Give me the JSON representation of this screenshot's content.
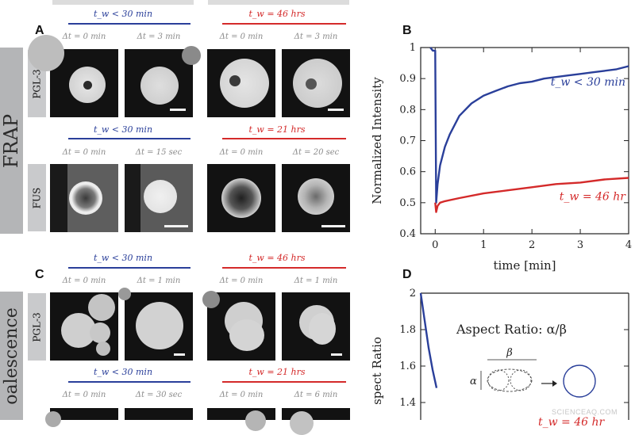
{
  "figure": {
    "side_labels": {
      "frap": "FRAP",
      "coalescence": "oalescence"
    },
    "panel_letters": {
      "A": "A",
      "B": "B",
      "C": "C",
      "D": "D"
    },
    "proteins": {
      "pgl3": "PGL-3",
      "fus": "FUS"
    },
    "conditions": {
      "a_top_left": "t_w < 30  min",
      "a_top_right": "t_w = 46  hrs",
      "a_bottom_left": "t_w < 30  min",
      "a_bottom_right": "t_w = 21  hrs",
      "c_top_left": "t_w < 30  min",
      "c_top_right": "t_w = 46  hrs",
      "c_bottom_left": "t_w < 30  min",
      "c_bottom_right": "t_w = 21  hrs"
    },
    "timepoints": {
      "a1": "Δt = 0  min",
      "a2": "Δt = 3  min",
      "a3": "Δt = 0  min",
      "a4": "Δt = 3  min",
      "a5": "Δt = 0  min",
      "a6": "Δt = 15  sec",
      "a7": "Δt = 0  min",
      "a8": "Δt = 20  sec",
      "c1": "Δt = 0  min",
      "c2": "Δt = 1  min",
      "c3": "Δt = 0  min",
      "c4": "Δt = 1  min",
      "c5": "Δt = 0  min",
      "c6": "Δt = 30  sec",
      "c7": "Δt = 0  min",
      "c8": "Δt = 6  min"
    },
    "colors": {
      "blue": "#2a3f9a",
      "red": "#d42a2a"
    },
    "watermark": "SCIENCEAQ.COM"
  },
  "chart_data": [
    {
      "type": "line",
      "panel": "B",
      "xlabel": "time [min]",
      "ylabel": "Normalized Intensity",
      "xlim": [
        -0.3,
        4
      ],
      "ylim": [
        0.4,
        1
      ],
      "xticks": [
        "0",
        "1",
        "2",
        "3",
        "4"
      ],
      "yticks": [
        "0.4",
        "0.5",
        "0.6",
        "0.7",
        "0.8",
        "0.9",
        "1"
      ],
      "series": [
        {
          "name": "t_w < 30  min",
          "color": "#2a3f9a",
          "x": [
            -0.1,
            -0.05,
            0,
            0.02,
            0.05,
            0.1,
            0.2,
            0.3,
            0.5,
            0.75,
            1.0,
            1.25,
            1.5,
            1.75,
            2.0,
            2.25,
            2.5,
            2.75,
            3.0,
            3.25,
            3.5,
            3.75,
            4.0
          ],
          "y": [
            1.0,
            0.99,
            0.99,
            0.5,
            0.56,
            0.62,
            0.68,
            0.72,
            0.78,
            0.82,
            0.845,
            0.86,
            0.875,
            0.885,
            0.89,
            0.9,
            0.905,
            0.91,
            0.915,
            0.92,
            0.925,
            0.93,
            0.94
          ]
        },
        {
          "name": "t_w = 46  hr",
          "color": "#d42a2a",
          "x": [
            0,
            0.02,
            0.05,
            0.1,
            0.2,
            0.5,
            1.0,
            1.5,
            2.0,
            2.5,
            3.0,
            3.5,
            4.0
          ],
          "y": [
            0.5,
            0.47,
            0.49,
            0.5,
            0.505,
            0.515,
            0.53,
            0.54,
            0.55,
            0.56,
            0.565,
            0.575,
            0.58
          ]
        }
      ]
    },
    {
      "type": "line",
      "panel": "D",
      "ylabel": "spect Ratio",
      "ylim": [
        1.3,
        2
      ],
      "yticks": [
        "1.4",
        "1.6",
        "1.8",
        "2"
      ],
      "annotation": "Aspect Ratio:  α/β",
      "inset_labels": {
        "alpha": "α",
        "beta": "β"
      },
      "partial_legend": "t_w = 46  hr",
      "series": [
        {
          "color": "#2a3f9a",
          "x": [
            0,
            0.05,
            0.1,
            0.15,
            0.2
          ],
          "y": [
            2.0,
            1.85,
            1.7,
            1.58,
            1.48
          ]
        }
      ]
    }
  ]
}
